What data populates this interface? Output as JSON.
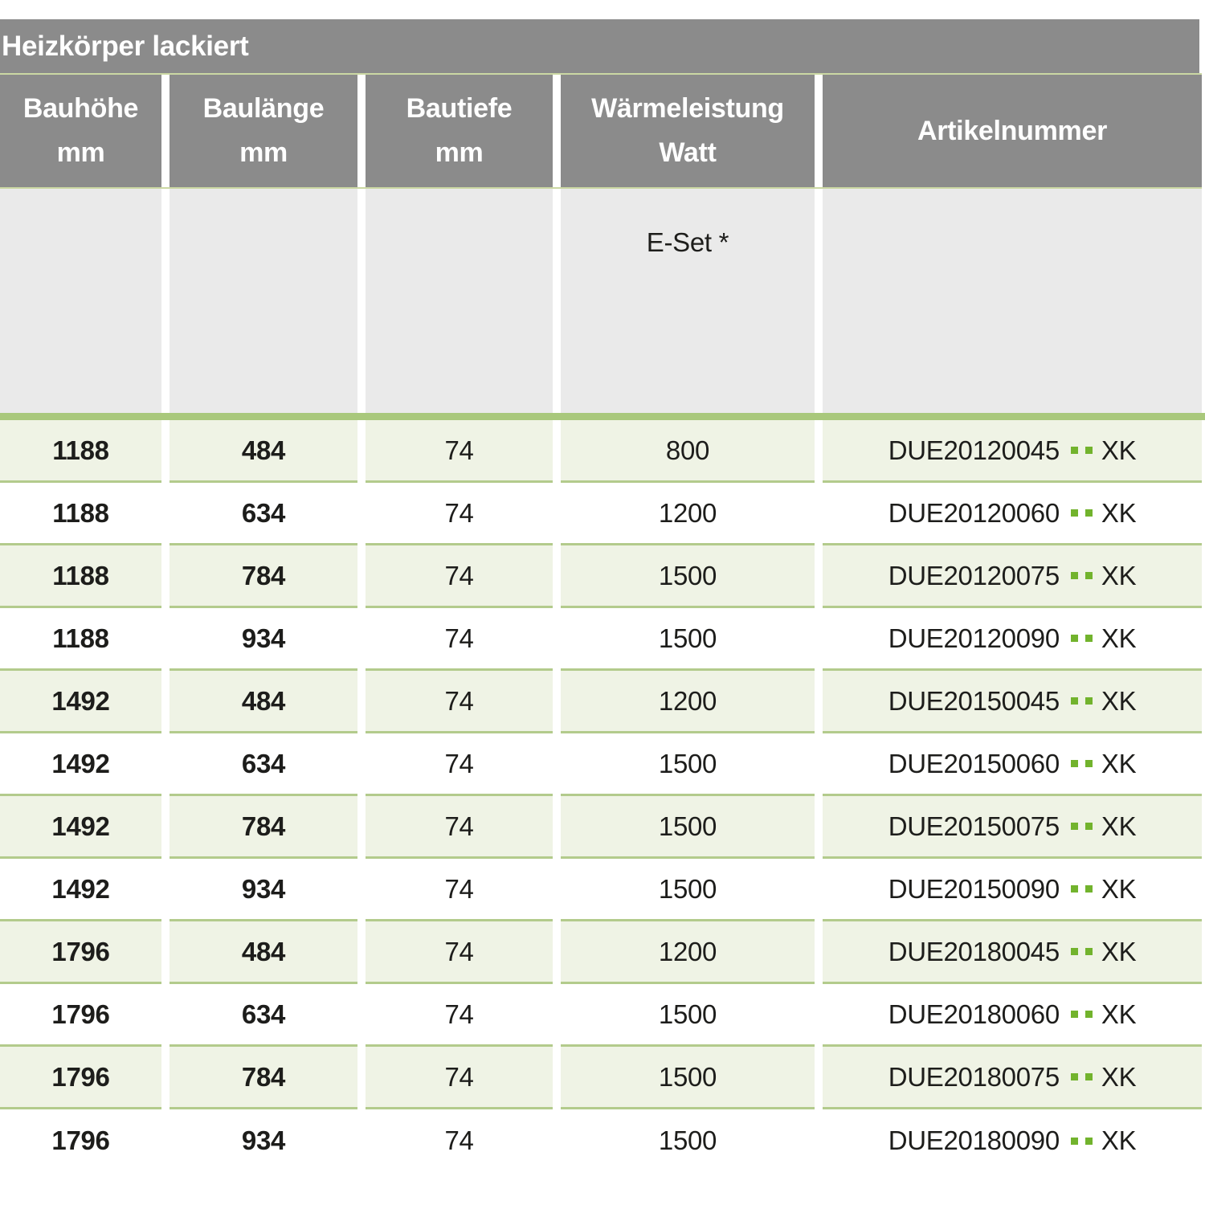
{
  "title": "Heizkörper lackiert",
  "columns": [
    {
      "line1": "Bauhöhe",
      "line2": "mm"
    },
    {
      "line1": "Baulänge",
      "line2": "mm"
    },
    {
      "line1": "Bautiefe",
      "line2": "mm"
    },
    {
      "line1": "Wärmeleistung",
      "line2": "Watt"
    },
    {
      "line1": "Artikelnummer",
      "line2": ""
    }
  ],
  "subheader": {
    "eset_label": "E-Set *"
  },
  "article_placeholder_dots": "..",
  "rows": [
    {
      "bauhoehe": "1188",
      "baulaenge": "484",
      "bautiefe": "74",
      "watt": "800",
      "artikel_prefix": "DUE20120045",
      "artikel_suffix": "XK"
    },
    {
      "bauhoehe": "1188",
      "baulaenge": "634",
      "bautiefe": "74",
      "watt": "1200",
      "artikel_prefix": "DUE20120060",
      "artikel_suffix": "XK"
    },
    {
      "bauhoehe": "1188",
      "baulaenge": "784",
      "bautiefe": "74",
      "watt": "1500",
      "artikel_prefix": "DUE20120075",
      "artikel_suffix": "XK"
    },
    {
      "bauhoehe": "1188",
      "baulaenge": "934",
      "bautiefe": "74",
      "watt": "1500",
      "artikel_prefix": "DUE20120090",
      "artikel_suffix": "XK"
    },
    {
      "bauhoehe": "1492",
      "baulaenge": "484",
      "bautiefe": "74",
      "watt": "1200",
      "artikel_prefix": "DUE20150045",
      "artikel_suffix": "XK"
    },
    {
      "bauhoehe": "1492",
      "baulaenge": "634",
      "bautiefe": "74",
      "watt": "1500",
      "artikel_prefix": "DUE20150060",
      "artikel_suffix": "XK"
    },
    {
      "bauhoehe": "1492",
      "baulaenge": "784",
      "bautiefe": "74",
      "watt": "1500",
      "artikel_prefix": "DUE20150075",
      "artikel_suffix": "XK"
    },
    {
      "bauhoehe": "1492",
      "baulaenge": "934",
      "bautiefe": "74",
      "watt": "1500",
      "artikel_prefix": "DUE20150090",
      "artikel_suffix": "XK"
    },
    {
      "bauhoehe": "1796",
      "baulaenge": "484",
      "bautiefe": "74",
      "watt": "1200",
      "artikel_prefix": "DUE20180045",
      "artikel_suffix": "XK"
    },
    {
      "bauhoehe": "1796",
      "baulaenge": "634",
      "bautiefe": "74",
      "watt": "1500",
      "artikel_prefix": "DUE20180060",
      "artikel_suffix": "XK"
    },
    {
      "bauhoehe": "1796",
      "baulaenge": "784",
      "bautiefe": "74",
      "watt": "1500",
      "artikel_prefix": "DUE20180075",
      "artikel_suffix": "XK"
    },
    {
      "bauhoehe": "1796",
      "baulaenge": "934",
      "bautiefe": "74",
      "watt": "1500",
      "artikel_prefix": "DUE20180090",
      "artikel_suffix": "XK"
    }
  ],
  "colors": {
    "header_gray": "#8b8b8b",
    "subheader_gray": "#eaeaea",
    "row_green": "#eff3e5",
    "separator_green": "#b3cb8c",
    "thick_bar_green": "#a9c87c",
    "dot_green": "#72b32d",
    "header_text": "#ffffff",
    "body_text": "#1d1d1b"
  }
}
